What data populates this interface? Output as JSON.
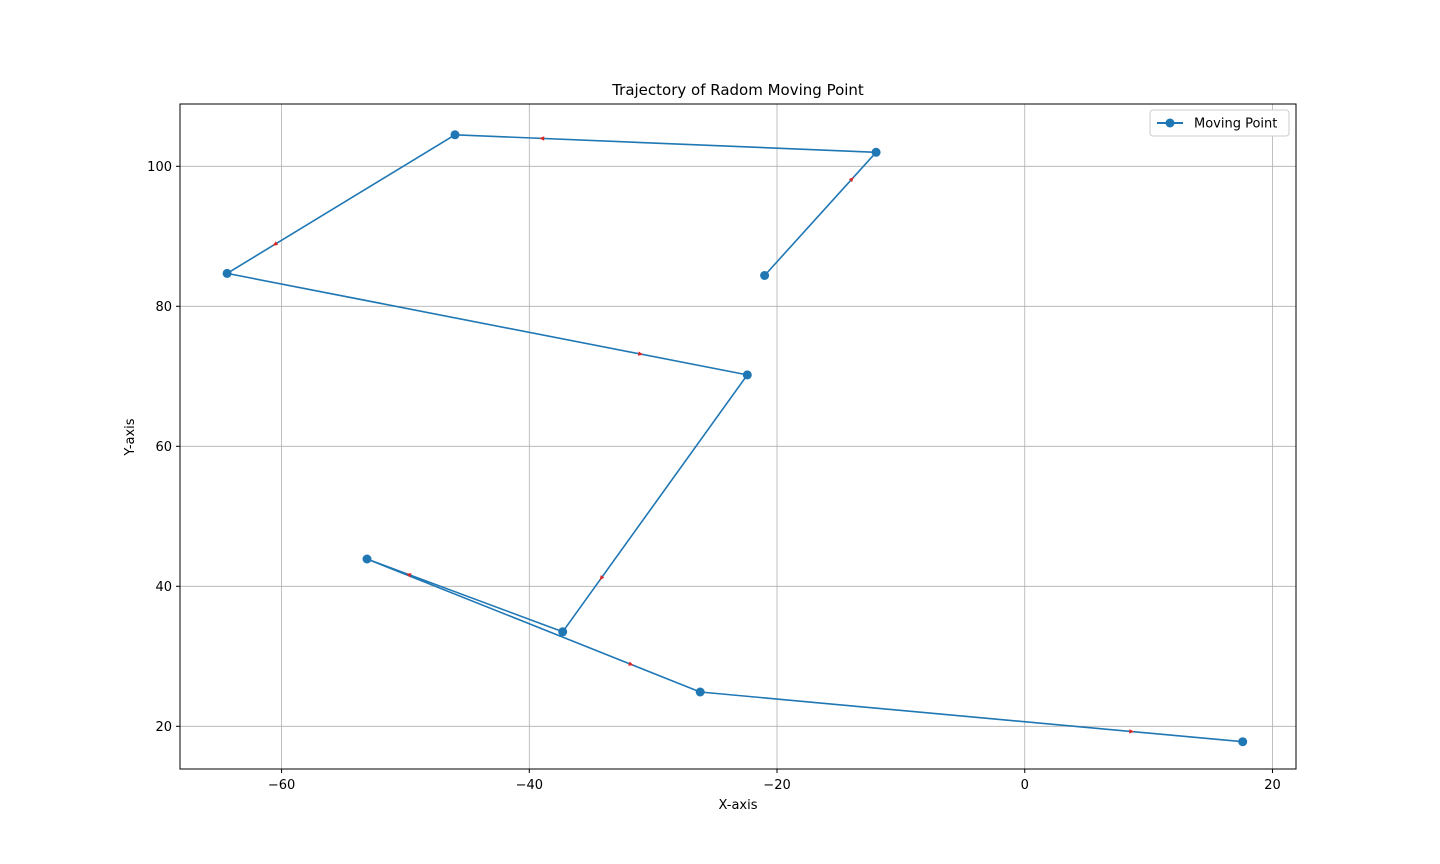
{
  "chart_data": {
    "type": "line",
    "title": "Trajectory of Radom Moving Point",
    "xlabel": "X-axis",
    "ylabel": "Y-axis",
    "xlim": [
      -68.2,
      21.9
    ],
    "ylim": [
      13.9,
      108.9
    ],
    "xticks": [
      -60,
      -40,
      -20,
      0,
      20
    ],
    "yticks": [
      20,
      40,
      60,
      80,
      100
    ],
    "xtick_labels": [
      "−60",
      "−40",
      "−20",
      "0",
      "20"
    ],
    "ytick_labels": [
      "20",
      "40",
      "60",
      "80",
      "100"
    ],
    "grid": true,
    "legend_position": "top-right",
    "series": [
      {
        "name": "Moving Point",
        "color": "#1f77b4",
        "marker": "circle",
        "x": [
          -21.0,
          -12.0,
          -46.0,
          -64.4,
          -22.4,
          -37.3,
          -53.1,
          -26.2,
          17.6
        ],
        "y": [
          84.4,
          102.0,
          104.5,
          84.7,
          70.2,
          33.5,
          43.9,
          24.9,
          17.8
        ]
      }
    ],
    "arrow_color": "#d62728"
  }
}
